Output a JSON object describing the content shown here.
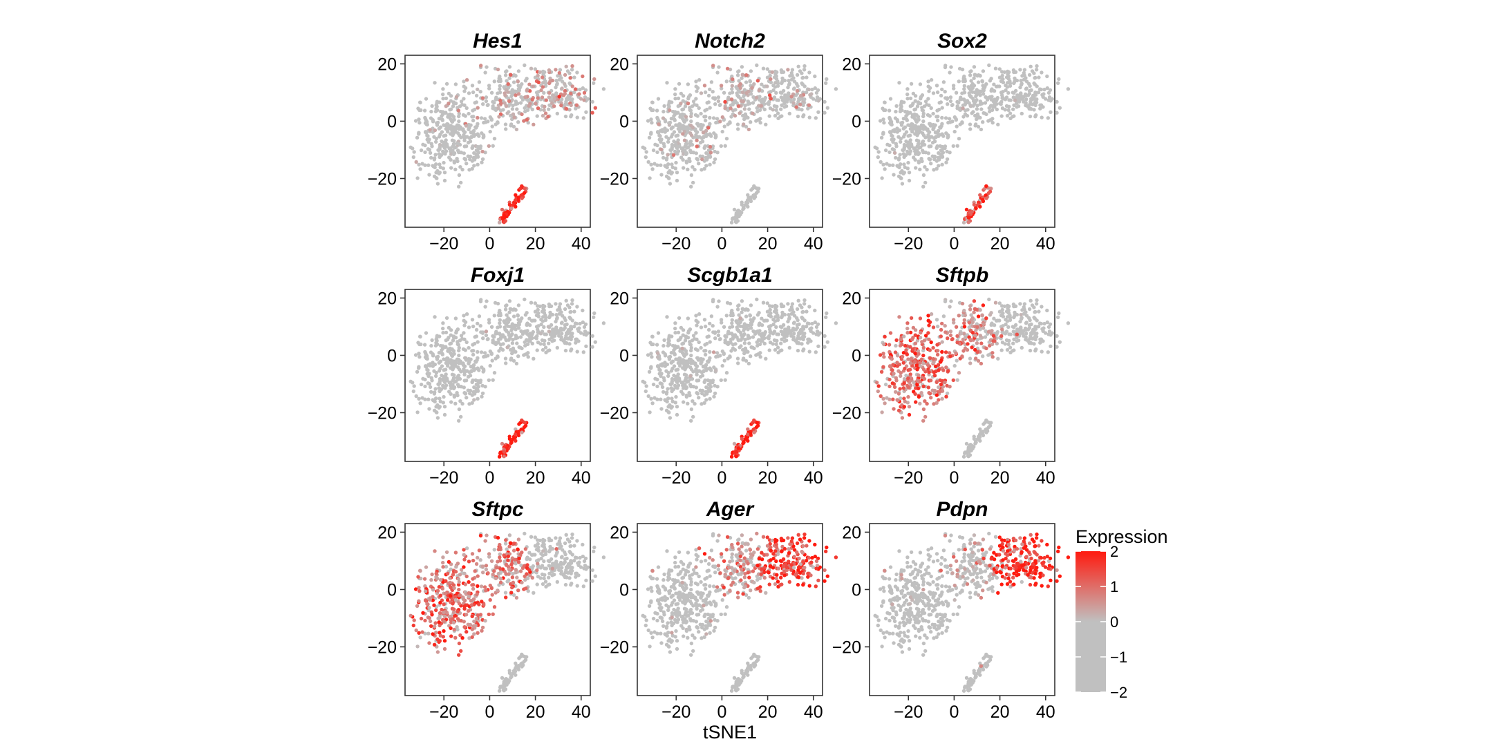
{
  "chart_data": {
    "type": "scatter",
    "xlabel": "tSNE1",
    "ylabel": "",
    "xlim": [
      -37,
      44
    ],
    "ylim": [
      -37,
      23
    ],
    "xticks": [
      -20,
      0,
      20,
      40
    ],
    "yticks": [
      20,
      0,
      -20
    ],
    "grid": false,
    "legend": {
      "title": "Expression",
      "placement": "right",
      "range": [
        -2,
        2
      ],
      "ticks": [
        2,
        1,
        0,
        -1,
        -2
      ],
      "colors": {
        "low": "#c0c0c0",
        "mid": "#c0c0c0",
        "high": "#ff1a0f"
      }
    },
    "clusters": [
      {
        "id": "epithelial",
        "center": [
          -16,
          -4
        ],
        "spread": [
          10,
          9
        ],
        "approx_cells": 380
      },
      {
        "id": "transitional",
        "center": [
          9,
          8
        ],
        "spread": [
          7,
          6
        ],
        "approx_cells": 170
      },
      {
        "id": "alveolar-type-1",
        "center": [
          30,
          10
        ],
        "spread": [
          7,
          4.5
        ],
        "approx_cells": 190
      },
      {
        "id": "airway",
        "center": [
          10,
          -30
        ],
        "spread": [
          2.5,
          4
        ],
        "approx_cells": 55
      }
    ],
    "panels": [
      {
        "gene": "Hes1",
        "mean_expression": {
          "epithelial": -1.3,
          "transitional": -0.6,
          "alveolar-type-1": 0.0,
          "airway": 1.8
        }
      },
      {
        "gene": "Notch2",
        "mean_expression": {
          "epithelial": -0.9,
          "transitional": -0.6,
          "alveolar-type-1": -0.8,
          "airway": -1.6
        }
      },
      {
        "gene": "Sox2",
        "mean_expression": {
          "epithelial": -1.9,
          "transitional": -1.9,
          "alveolar-type-1": -1.9,
          "airway": 1.3
        }
      },
      {
        "gene": "Foxj1",
        "mean_expression": {
          "epithelial": -2.0,
          "transitional": -2.0,
          "alveolar-type-1": -2.0,
          "airway": 2.0
        }
      },
      {
        "gene": "Scgb1a1",
        "mean_expression": {
          "epithelial": -1.5,
          "transitional": -1.6,
          "alveolar-type-1": -1.7,
          "airway": 2.0
        }
      },
      {
        "gene": "Sftpb",
        "mean_expression": {
          "epithelial": 0.85,
          "transitional": 0.35,
          "alveolar-type-1": -1.8,
          "airway": -2.0
        }
      },
      {
        "gene": "Sftpc",
        "mean_expression": {
          "epithelial": 0.9,
          "transitional": 0.55,
          "alveolar-type-1": -1.9,
          "airway": -2.0
        }
      },
      {
        "gene": "Ager",
        "mean_expression": {
          "epithelial": -1.4,
          "transitional": 0.3,
          "alveolar-type-1": 1.5,
          "airway": -2.0
        }
      },
      {
        "gene": "Pdpn",
        "mean_expression": {
          "epithelial": -1.6,
          "transitional": -0.3,
          "alveolar-type-1": 1.7,
          "airway": -1.8
        }
      }
    ]
  }
}
